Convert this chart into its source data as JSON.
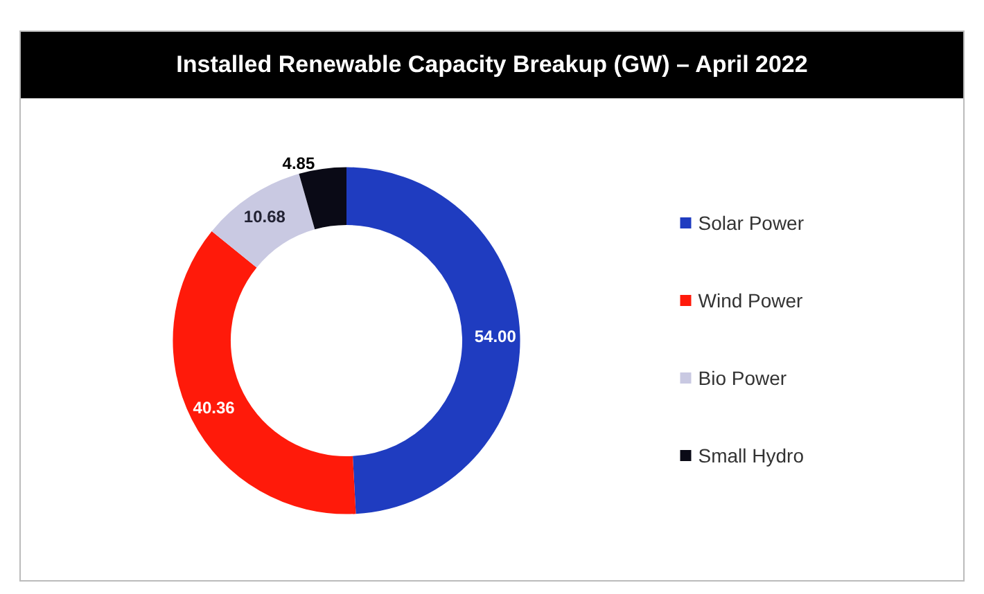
{
  "chart_data": {
    "type": "donut",
    "title": "Installed Renewable Capacity Breakup (GW) – April 2022",
    "categories": [
      "Solar Power",
      "Wind Power",
      "Bio Power",
      "Small Hydro"
    ],
    "values": [
      54.0,
      40.36,
      10.68,
      4.85
    ],
    "colors": [
      "#1f3cc0",
      "#ff1a0a",
      "#c9c9e2",
      "#0a0a16"
    ],
    "value_labels": [
      "54.00",
      "40.36",
      "10.68",
      "4.85"
    ],
    "legend": "right"
  }
}
